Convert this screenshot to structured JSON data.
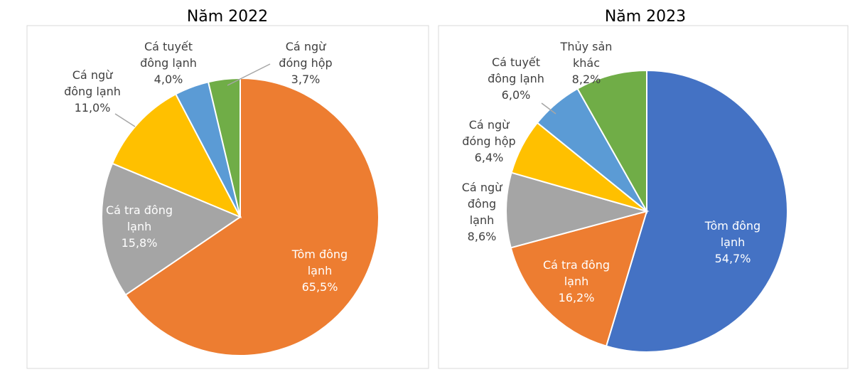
{
  "chart_data": [
    {
      "type": "pie",
      "title": "Năm 2022",
      "categories": [
        "Tôm đông lạnh",
        "Cá tra đông lạnh",
        "Cá ngừ đông lạnh",
        "Cá tuyết đông lạnh",
        "Cá ngừ đóng hộp"
      ],
      "values": [
        65.5,
        15.8,
        11.0,
        4.0,
        3.7
      ],
      "value_labels": [
        "65,5%",
        "15,8%",
        "11,0%",
        "4,0%",
        "3,7%"
      ],
      "colors": [
        "#ed7d31",
        "#a5a5a5",
        "#ffc000",
        "#5b9bd5",
        "#70ad47"
      ]
    },
    {
      "type": "pie",
      "title": "Năm 2023",
      "categories": [
        "Tôm đông lạnh",
        "Cá tra đông lạnh",
        "Cá ngừ đông lạnh",
        "Cá ngừ đóng hộp",
        "Cá tuyết đông lạnh",
        "Thủy sản khác"
      ],
      "values": [
        54.7,
        16.2,
        8.6,
        6.4,
        6.0,
        8.2
      ],
      "value_labels": [
        "54,7%",
        "16,2%",
        "8,6%",
        "6,4%",
        "6,0%",
        "8,2%"
      ],
      "colors": [
        "#4472c4",
        "#ed7d31",
        "#a5a5a5",
        "#ffc000",
        "#5b9bd5",
        "#70ad47"
      ]
    }
  ]
}
